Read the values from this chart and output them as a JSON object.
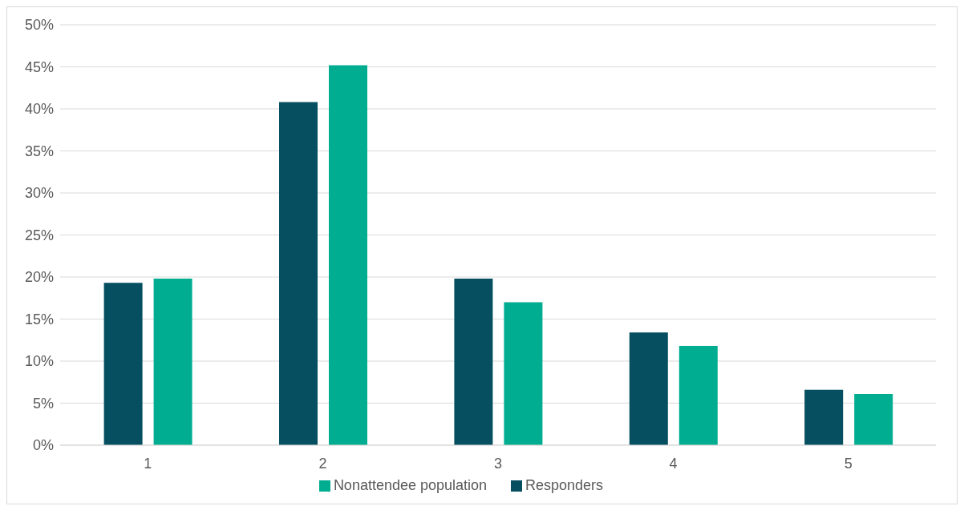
{
  "chart_data": {
    "type": "bar",
    "categories": [
      "1",
      "2",
      "3",
      "4",
      "5"
    ],
    "series": [
      {
        "name": "Responders",
        "color": "#064f60",
        "values": [
          19.3,
          40.8,
          19.8,
          13.4,
          6.6
        ]
      },
      {
        "name": "Nonattendee population",
        "color": "#00ad91",
        "values": [
          19.8,
          45.2,
          17.0,
          11.8,
          6.1
        ]
      }
    ],
    "ylim": [
      0,
      50
    ],
    "yticks": [
      {
        "value": 0,
        "label": "0%"
      },
      {
        "value": 5,
        "label": "5%"
      },
      {
        "value": 10,
        "label": "10%"
      },
      {
        "value": 15,
        "label": "15%"
      },
      {
        "value": 20,
        "label": "20%"
      },
      {
        "value": 25,
        "label": "25%"
      },
      {
        "value": 30,
        "label": "30%"
      },
      {
        "value": 35,
        "label": "35%"
      },
      {
        "value": 40,
        "label": "40%"
      },
      {
        "value": 45,
        "label": "45%"
      },
      {
        "value": 50,
        "label": "50%"
      }
    ],
    "grid": "y",
    "legend": "bottom"
  }
}
